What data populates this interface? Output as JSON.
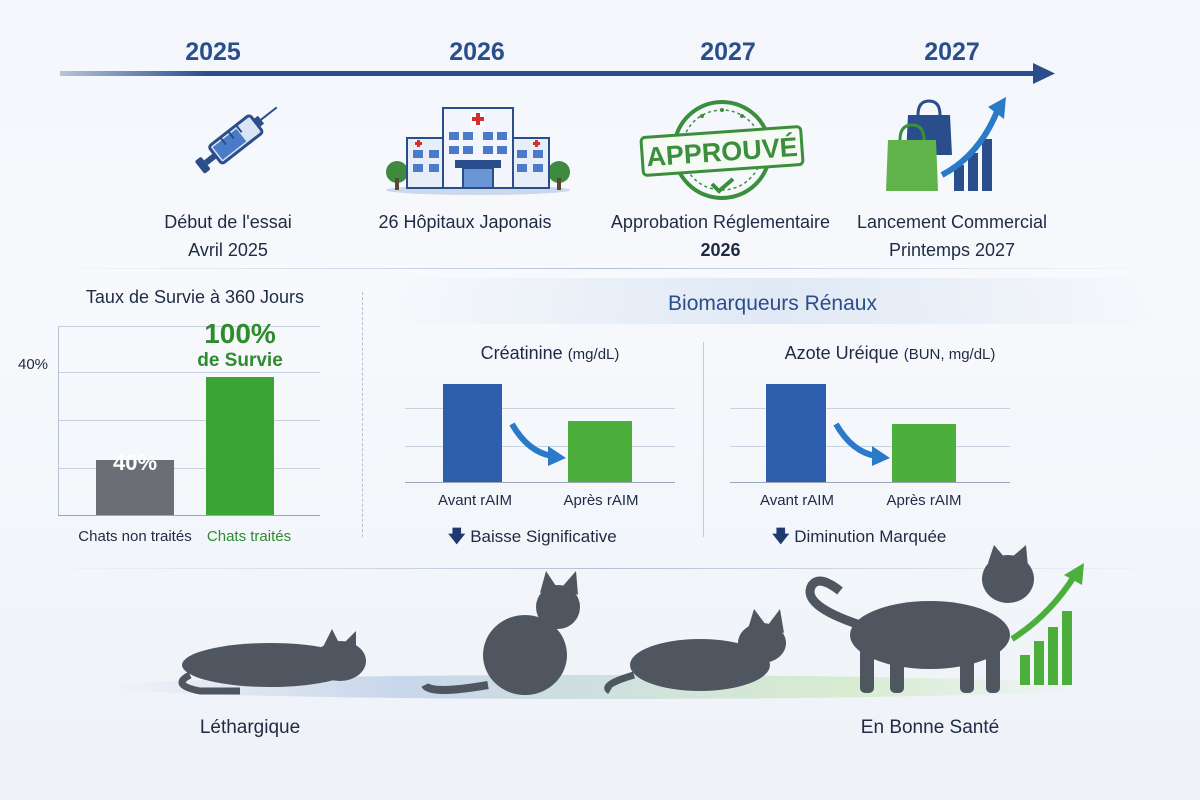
{
  "timeline": {
    "years": [
      "2025",
      "2026",
      "2027",
      "2027"
    ],
    "milestones": [
      {
        "icon": "syringe-icon",
        "line1": "Début de l'essai",
        "line2": "Avril 2025"
      },
      {
        "icon": "hospital-icon",
        "line1": "26 Hôpitaux Japonais",
        "line2": ""
      },
      {
        "icon": "approved-stamp-icon",
        "line1": "Approbation Réglementaire",
        "line2": "2026",
        "stamp_text": "APPROUVÉ"
      },
      {
        "icon": "shopping-growth-icon",
        "line1": "Lancement Commercial",
        "line2": "Printemps 2027"
      }
    ]
  },
  "survival": {
    "title": "Taux de Survie à 360 Jours",
    "axis_label": "40%",
    "headline": "100%",
    "headline_sub": "de Survie",
    "bar_value_label": "40%",
    "categories": [
      "Chats non traités",
      "Chats traités"
    ],
    "colors": {
      "untreated": "#6b6f75",
      "treated": "#3aa535",
      "accent_text": "#2e8b2e"
    }
  },
  "biomarkers": {
    "title": "Biomarqueurs Rénaux",
    "creatinine": {
      "title": "Créatinine",
      "unit": "(mg/dL)",
      "categories": [
        "Avant rAIM",
        "Après rAIM"
      ],
      "note": "Baisse Significative"
    },
    "bun": {
      "title": "Azote Uréique",
      "unit": "(BUN, mg/dL)",
      "categories": [
        "Avant rAIM",
        "Après rAIM"
      ],
      "note": "Diminution Marquée"
    },
    "colors": {
      "before": "#2e5fae",
      "after": "#4caf3c"
    }
  },
  "cats": {
    "left_label": "Léthargique",
    "right_label": "En Bonne Santé"
  },
  "chart_data": [
    {
      "type": "bar",
      "title": "Taux de Survie à 360 Jours",
      "categories": [
        "Chats non traités",
        "Chats traités"
      ],
      "values": [
        40,
        100
      ],
      "ylabel": "",
      "ylim": [
        0,
        110
      ]
    },
    {
      "type": "bar",
      "title": "Créatinine (mg/dL)",
      "categories": [
        "Avant rAIM",
        "Après rAIM"
      ],
      "values": [
        100,
        62
      ]
    },
    {
      "type": "bar",
      "title": "Azote Uréique (BUN, mg/dL)",
      "categories": [
        "Avant rAIM",
        "Après rAIM"
      ],
      "values": [
        100,
        59
      ]
    }
  ]
}
